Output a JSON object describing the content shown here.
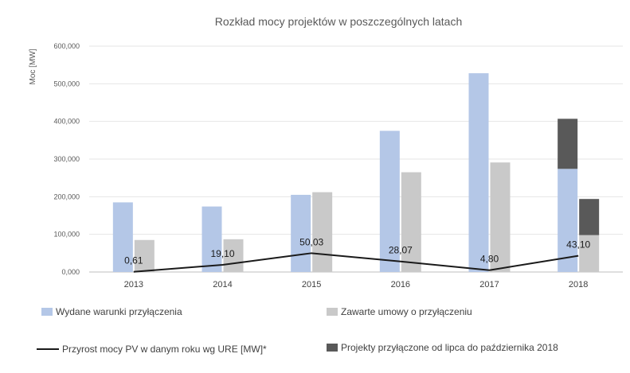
{
  "chart_data": {
    "type": "bar",
    "title": "Rozkład mocy projektów w poszczególnych latach",
    "ylabel": "Moc [MW]",
    "xlabel": "",
    "ylim": [
      0,
      600
    ],
    "y_ticks": [
      "0,000",
      "100,000",
      "200,000",
      "300,000",
      "400,000",
      "500,000",
      "600,000"
    ],
    "categories": [
      "2013",
      "2014",
      "2015",
      "2016",
      "2017",
      "2018"
    ],
    "series": [
      {
        "name": "Wydane warunki przyłączenia",
        "kind": "bar",
        "color": "#b4c7e7",
        "values": [
          185,
          174,
          205,
          375,
          528,
          274
        ]
      },
      {
        "name": "Zawarte umowy o przyłączeniu",
        "kind": "bar",
        "color": "#c9c9c9",
        "values": [
          85,
          87,
          212,
          265,
          291,
          98
        ]
      },
      {
        "name": "Projekty przyłączone od lipca do października 2018",
        "kind": "stacked-bar",
        "color": "#595959",
        "stack_on": [
          null,
          null,
          null,
          null,
          null,
          {
            "series": "Wydane warunki przyłączenia",
            "value": 133
          }
        ],
        "stack_on_second": [
          null,
          null,
          null,
          null,
          null,
          {
            "series": "Zawarte umowy o przyłączeniu",
            "value": 96
          }
        ]
      },
      {
        "name": "Przyrost mocy PV w danym roku wg URE [MW]*",
        "kind": "line",
        "color": "#1a1a1a",
        "values": [
          0.61,
          19.1,
          50.03,
          28.07,
          4.8,
          43.1
        ],
        "labels": [
          "0,61",
          "19,10",
          "50,03",
          "28,07",
          "4,80",
          "43,10"
        ]
      }
    ],
    "grid": true,
    "legend_position": "bottom"
  },
  "legend": {
    "item1": "Wydane warunki przyłączenia",
    "item2": "Zawarte umowy o przyłączeniu",
    "item3": "Przyrost mocy PV w danym roku wg URE [MW]*",
    "item4": "Projekty przyłączone od lipca do października 2018"
  }
}
